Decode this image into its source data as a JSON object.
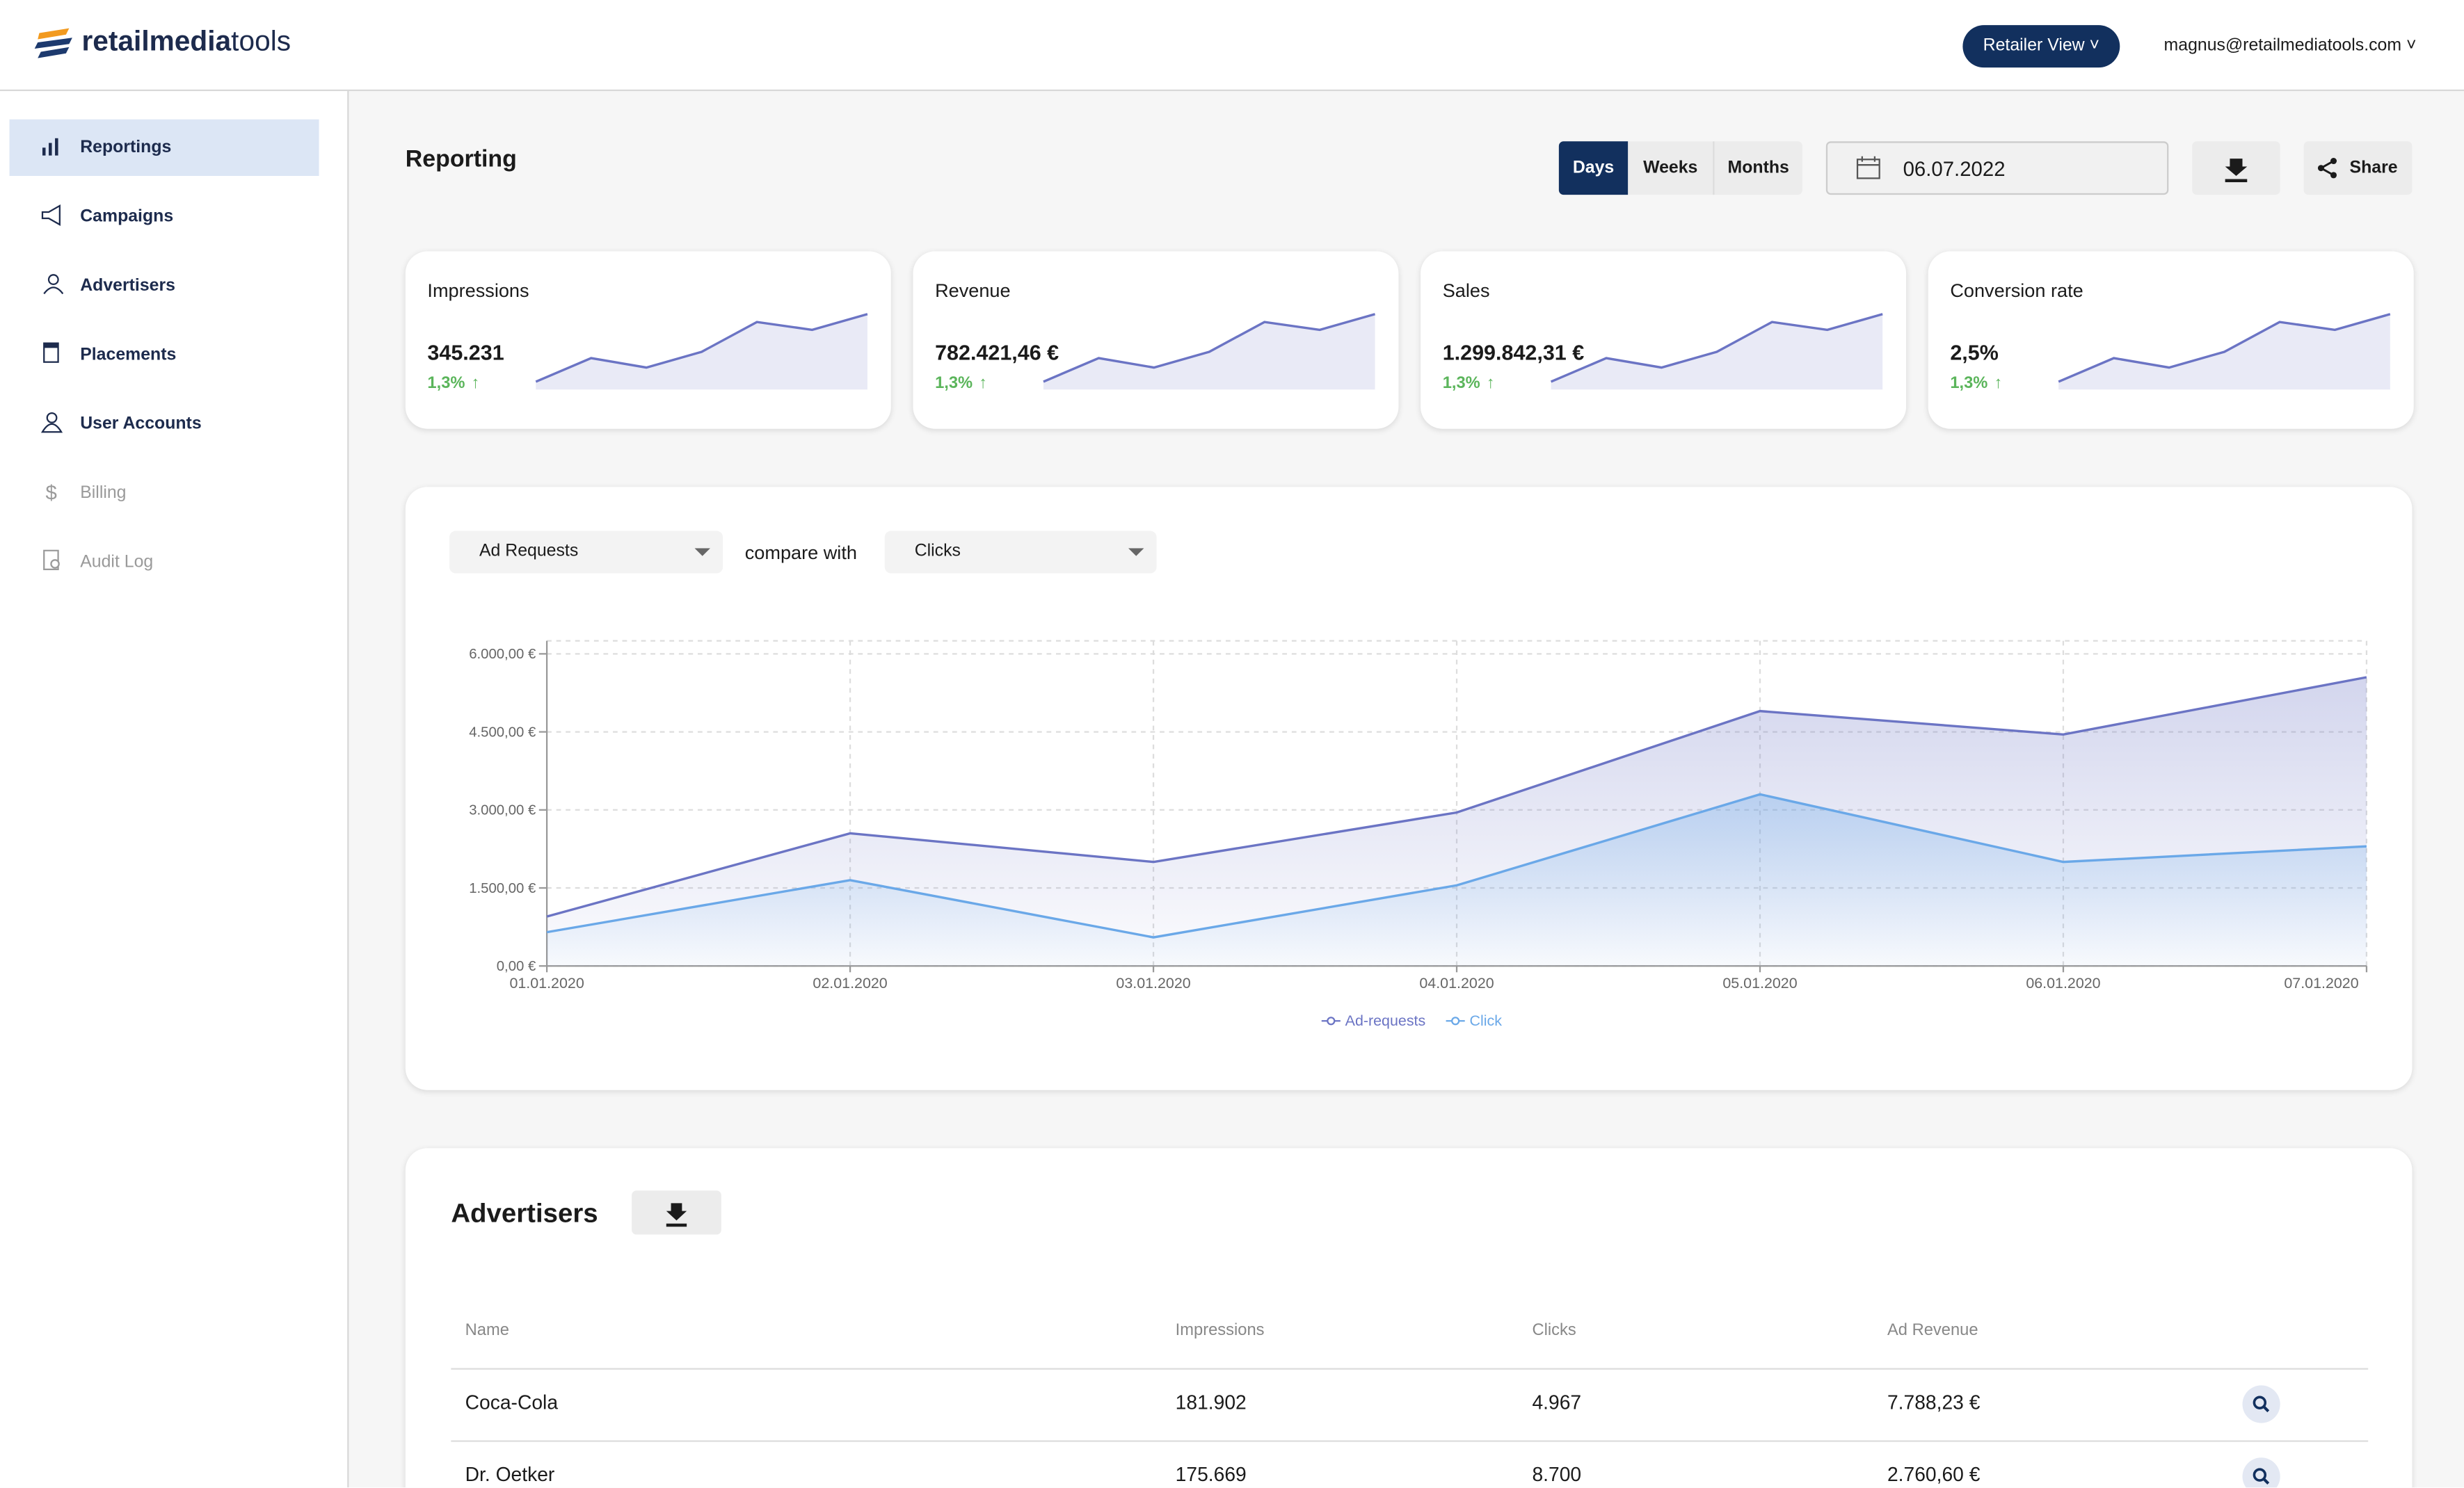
{
  "header": {
    "logo_bold": "retailmedia",
    "logo_light": "tools",
    "view_button": "Retailer View",
    "user": "magnus@retailmediatools.com"
  },
  "nav": [
    "Reportings",
    "Campaigns",
    "Advertisers",
    "Placements",
    "User Accounts",
    "Billing",
    "Audit Log"
  ],
  "reporting": {
    "title": "Reporting",
    "periods": [
      "Days",
      "Weeks",
      "Months"
    ],
    "date": "06.07.2022",
    "share": "Share"
  },
  "kpis": [
    {
      "label": "Impressions",
      "value": "345.231",
      "change": "1,3%",
      "trend": [
        0,
        15,
        9,
        19,
        38,
        33,
        43
      ]
    },
    {
      "label": "Revenue",
      "value": "782.421,46 €",
      "change": "1,3%",
      "trend": [
        0,
        15,
        9,
        19,
        38,
        33,
        43
      ]
    },
    {
      "label": "Sales",
      "value": "1.299.842,31 €",
      "change": "1,3%",
      "trend": [
        0,
        15,
        9,
        19,
        38,
        33,
        43
      ]
    },
    {
      "label": "Conversion rate",
      "value": "2,5%",
      "change": "1,3%",
      "trend": [
        0,
        15,
        9,
        19,
        38,
        33,
        43
      ]
    }
  ],
  "chart_controls": {
    "metric": "Ad Requests",
    "compare_label": "compare with",
    "compare_metric": "Clicks"
  },
  "chart_data": {
    "type": "line",
    "categories": [
      "01.01.2020",
      "02.01.2020",
      "03.01.2020",
      "04.01.2020",
      "05.01.2020",
      "06.01.2020",
      "07.01.2020"
    ],
    "series": [
      {
        "name": "Ad-requests",
        "color": "#6b74c4",
        "values": [
          950,
          2550,
          2000,
          2950,
          4900,
          4450,
          5550
        ]
      },
      {
        "name": "Click",
        "color": "#6aa8e8",
        "values": [
          650,
          1650,
          550,
          1550,
          3300,
          2000,
          2300
        ]
      }
    ],
    "ylim": [
      0,
      6250
    ],
    "yticks": [
      {
        "value": 0,
        "label": "0,00 €"
      },
      {
        "value": 1500,
        "label": "1.500,00 €"
      },
      {
        "value": 3000,
        "label": "3.000,00 €"
      },
      {
        "value": 4500,
        "label": "4.500,00 €"
      },
      {
        "value": 6000,
        "label": "6.000,00 €"
      }
    ],
    "grid": true
  },
  "advertisers": {
    "title": "Advertisers",
    "columns": [
      "Name",
      "Impressions",
      "Clicks",
      "Ad Revenue"
    ],
    "rows": [
      [
        "Coca-Cola",
        "181.902",
        "4.967",
        "7.788,23 €"
      ],
      [
        "Dr. Oetker",
        "175.669",
        "8.700",
        "2.760,60 €"
      ]
    ]
  }
}
